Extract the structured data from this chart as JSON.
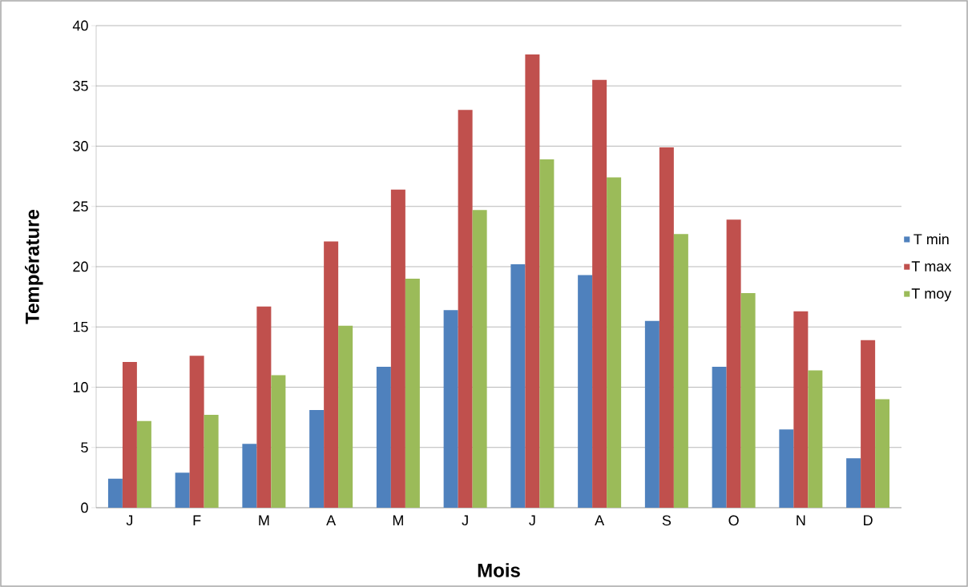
{
  "chart_data": {
    "type": "bar",
    "xlabel": "Mois",
    "ylabel": "Température",
    "categories": [
      "J",
      "F",
      "M",
      "A",
      "M",
      "J",
      "J",
      "A",
      "S",
      "O",
      "N",
      "D"
    ],
    "series": [
      {
        "name": "T min",
        "color": "#4f81bd",
        "values": [
          2.4,
          2.9,
          5.3,
          8.1,
          11.7,
          16.4,
          20.2,
          19.3,
          15.5,
          11.7,
          6.5,
          4.1
        ]
      },
      {
        "name": "T max",
        "color": "#c0504d",
        "values": [
          12.1,
          12.6,
          16.7,
          22.1,
          26.4,
          33.0,
          37.6,
          35.5,
          29.9,
          23.9,
          16.3,
          13.9
        ]
      },
      {
        "name": "T moy",
        "color": "#9bbb59",
        "values": [
          7.2,
          7.7,
          11.0,
          15.1,
          19.0,
          24.7,
          28.9,
          27.4,
          22.7,
          17.8,
          11.4,
          9.0
        ]
      }
    ],
    "ylim": [
      0,
      40
    ],
    "yticks": [
      0,
      5,
      10,
      15,
      20,
      25,
      30,
      35,
      40
    ],
    "grid": "y",
    "legend": "right"
  }
}
